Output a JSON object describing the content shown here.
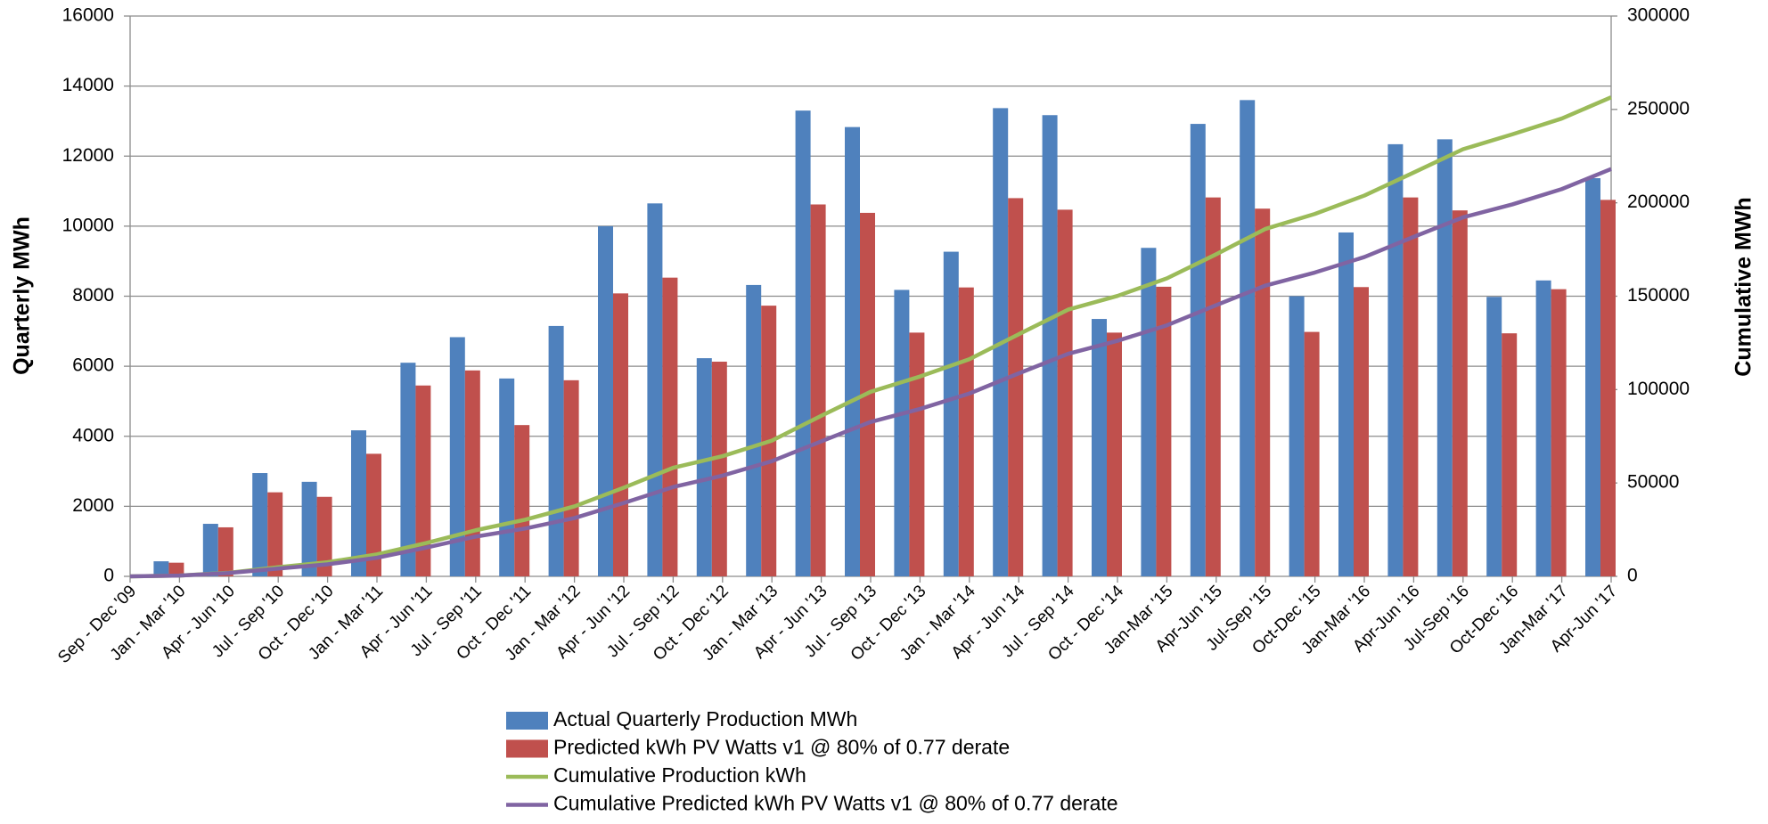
{
  "chart_data": {
    "type": "bar",
    "y_label": "Quarterly MWh",
    "y2_label": "Cumulative MWh",
    "categories": [
      "Sep - Dec '09",
      "Jan - Mar '10",
      "Apr - Jun '10",
      "Jul - Sep '10",
      "Oct - Dec '10",
      "Jan - Mar '11",
      "Apr - Jun '11",
      "Jul - Sep '11",
      "Oct - Dec '11",
      "Jan - Mar '12",
      "Apr - Jun '12",
      "Jul - Sep '12",
      "Oct - Dec '12",
      "Jan - Mar '13",
      "Apr - Jun '13",
      "Jul - Sep '13",
      "Oct - Dec '13",
      "Jan - Mar '14",
      "Apr - Jun '14",
      "Jul - Sep '14",
      "Oct - Dec '14",
      "Jan-Mar '15",
      "Apr-Jun '15",
      "Jul-Sep '15",
      "Oct-Dec '15",
      "Jan-Mar '16",
      "Apr-Jun '16",
      "Jul-Sep '16",
      "Oct-Dec '16",
      "Jan-Mar '17",
      "Apr-Jun '17"
    ],
    "series": [
      {
        "name": "Actual Quarterly Production MWh",
        "type": "bar",
        "color": "#4f81bd",
        "values": [
          0,
          430,
          1500,
          2950,
          2700,
          4170,
          6100,
          6830,
          5650,
          7150,
          10000,
          10650,
          6230,
          8320,
          13300,
          12830,
          8180,
          9270,
          13370,
          13170,
          7350,
          9380,
          12920,
          13600,
          8000,
          9820,
          12340,
          12480,
          7980,
          8450,
          11370
        ]
      },
      {
        "name": "Predicted kWh PV Watts v1 @ 80% of 0.77 derate",
        "type": "bar",
        "color": "#c0504d",
        "values": [
          0,
          390,
          1400,
          2400,
          2270,
          3500,
          5450,
          5880,
          4320,
          5600,
          8080,
          8530,
          6130,
          7730,
          10620,
          10380,
          6960,
          8250,
          10800,
          10470,
          6960,
          8270,
          10820,
          10500,
          6980,
          8260,
          10820,
          10450,
          6940,
          8200,
          10750
        ]
      },
      {
        "name": "Cumulative Production kWh",
        "type": "line",
        "axis": "y2",
        "color": "#9bbb59",
        "values": [
          0,
          430,
          1930,
          4880,
          7580,
          11750,
          17850,
          24680,
          30330,
          37480,
          47480,
          58130,
          64360,
          72680,
          85980,
          98810,
          106990,
          116260,
          129630,
          142800,
          150150,
          159530,
          172450,
          186050,
          194050,
          203870,
          216210,
          228690,
          236670,
          245120,
          256490
        ]
      },
      {
        "name": "Cumulative Predicted kWh PV Watts v1 @ 80% of 0.77 derate",
        "type": "line",
        "axis": "y2",
        "color": "#8064a2",
        "values": [
          0,
          390,
          1790,
          4190,
          6460,
          9960,
          15410,
          21290,
          25610,
          31210,
          39290,
          47820,
          53950,
          61680,
          72300,
          82680,
          89640,
          97890,
          108690,
          119160,
          126120,
          134390,
          145210,
          155710,
          162690,
          170950,
          181770,
          192220,
          199160,
          207360,
          218110
        ]
      }
    ],
    "ylim": [
      0,
      16000
    ],
    "yticks": [
      0,
      2000,
      4000,
      6000,
      8000,
      10000,
      12000,
      14000,
      16000
    ],
    "y2lim": [
      0,
      300000
    ],
    "y2ticks": [
      0,
      50000,
      100000,
      150000,
      200000,
      250000,
      300000
    ],
    "grid": true,
    "legend": "bottom"
  }
}
